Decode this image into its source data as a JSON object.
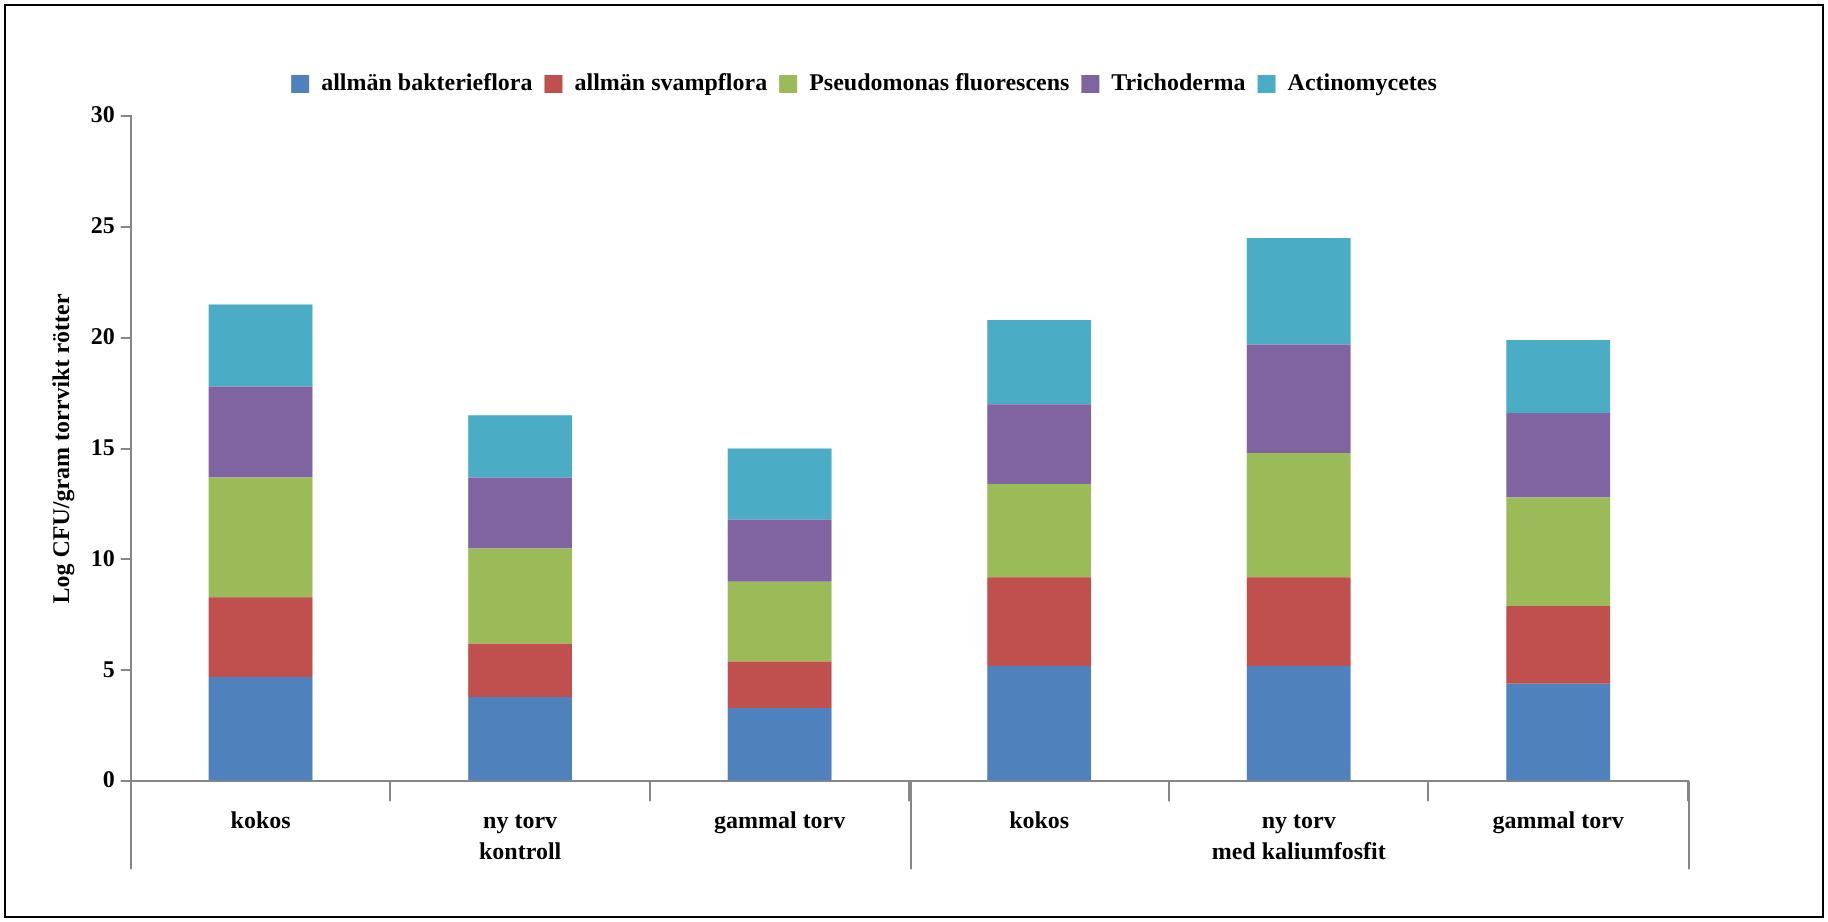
{
  "chart_data": {
    "type": "bar",
    "stacked": true,
    "ylabel": "Log CFU/gram torrvikt rötter",
    "categories": [
      "kokos",
      "ny torv",
      "gammal torv",
      "kokos",
      "ny torv",
      "gammal torv"
    ],
    "annotations": [
      "kontroll",
      "med kaliumfosfit"
    ],
    "series": [
      {
        "name": "allmän bakterieflora",
        "color": "#4f81bd",
        "values": [
          4.7,
          3.8,
          3.3,
          5.2,
          5.2,
          4.4
        ]
      },
      {
        "name": "allmän svampflora",
        "color": "#c0504d",
        "values": [
          3.6,
          2.4,
          2.1,
          4.0,
          4.0,
          3.5
        ]
      },
      {
        "name": "Pseudomonas fluorescens",
        "color": "#9bbb59",
        "values": [
          5.4,
          4.3,
          3.6,
          4.2,
          5.6,
          4.9
        ]
      },
      {
        "name": "Trichoderma",
        "color": "#8064a2",
        "values": [
          4.1,
          3.2,
          2.8,
          3.6,
          4.9,
          3.8
        ]
      },
      {
        "name": "Actinomycetes",
        "color": "#4bacc6",
        "values": [
          3.7,
          2.8,
          3.2,
          3.8,
          4.8,
          3.3
        ]
      }
    ],
    "ylim": [
      0,
      30
    ],
    "yticks": [
      0,
      5,
      10,
      15,
      20,
      25,
      30
    ],
    "grid": false,
    "legend": "top"
  }
}
